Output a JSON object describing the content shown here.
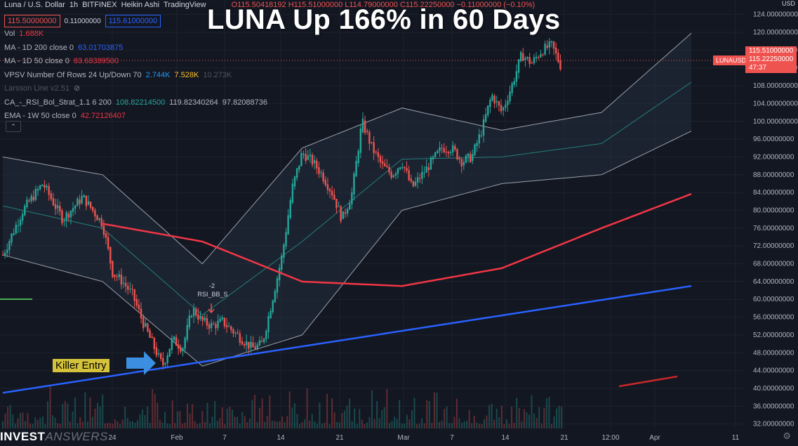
{
  "headline": "LUNA Up 166% in 60 Days",
  "symbol_line": {
    "name": "Luna / U.S. Dollar",
    "interval": "1h",
    "exchange": "BITFINEX",
    "type": "Heikin Ashi",
    "source": "TradingView",
    "ohlc": "O115.50418192 H115.51000000 L114.79000000 C115.22250000 −0.11000000 (−0.10%)"
  },
  "sell_price": "115.50000000",
  "spread": "0.11000000",
  "buy_price": "115.61000000",
  "indicators": [
    {
      "label": "Vol",
      "values": [
        {
          "text": "1.688K",
          "color": "#f23645"
        }
      ]
    },
    {
      "label": "MA - 1D 200 close 0",
      "values": [
        {
          "text": "63.01703875",
          "color": "#2962ff"
        }
      ]
    },
    {
      "label": "MA - 1D 50 close 0",
      "values": [
        {
          "text": "83.68389500",
          "color": "#f23645"
        }
      ]
    },
    {
      "label": "VPSV Number Of Rows 24 Up/Down 70",
      "values": [
        {
          "text": "2.744K",
          "color": "#2196f3"
        },
        {
          "text": "7.528K",
          "color": "#fbc02d"
        },
        {
          "text": "10.273K",
          "color": "#50535e"
        }
      ]
    },
    {
      "label": "Larsson Line v2.51",
      "values": [],
      "icon": "eye-off-icon"
    },
    {
      "label": "CA_-_RSI_Bol_Strat_1.1 6 200",
      "values": [
        {
          "text": "108.82214500",
          "color": "#26a69a"
        },
        {
          "text": "119.82340264",
          "color": "#b2b5be"
        },
        {
          "text": "97.82088736",
          "color": "#b2b5be"
        }
      ]
    },
    {
      "label": "EMA - 1W 50 close 0",
      "values": [
        {
          "text": "42.72126407",
          "color": "#f23645"
        }
      ]
    }
  ],
  "annotation_killer": "Killer Entry",
  "annotation_signal": "RSI_BB_S",
  "annotation_signal_num": "-2",
  "current_price_tag": "LUNAUSD",
  "current_price_high": "115.51000000",
  "current_price": "115.22250000",
  "countdown": "47:37",
  "currency": "USD",
  "brand_bold": "INVEST",
  "brand_thin": "ANSWERS",
  "colors": {
    "bg": "#131722",
    "up": "#26a69a",
    "down": "#ef5350",
    "ma200": "#2962ff",
    "ma50": "#f23645",
    "bb": "#787b86"
  },
  "chart_data": {
    "type": "line",
    "title": "LUNA Up 166% in 60 Days",
    "y_axis": {
      "ticks": [
        32,
        36,
        40,
        44,
        48,
        52,
        56,
        60,
        64,
        68,
        72,
        76,
        80,
        84,
        88,
        92,
        96,
        100,
        104,
        108,
        112,
        116,
        120,
        124
      ],
      "range": [
        31,
        126
      ],
      "unit": "USD"
    },
    "x_axis": {
      "tick_labels": [
        "24",
        "Feb",
        "7",
        "14",
        "21",
        "Mar",
        "7",
        "14",
        "21",
        "12:00",
        "Apr",
        "11"
      ]
    },
    "series": [
      {
        "name": "Price",
        "x": [
          0,
          2,
          4,
          6,
          8,
          10,
          11,
          12,
          13,
          14,
          15,
          16,
          17,
          18,
          19,
          20,
          21,
          22,
          23,
          24,
          25,
          26,
          27,
          28,
          29,
          30,
          31,
          32,
          33,
          34,
          35,
          36,
          37,
          38,
          39,
          40,
          41,
          42,
          43,
          44,
          45,
          46,
          47,
          48,
          49,
          50,
          51,
          52,
          53,
          54,
          55,
          56,
          57,
          58,
          59,
          60,
          61,
          62,
          63,
          64,
          65,
          66,
          67,
          68,
          69
        ],
        "values": [
          70,
          80,
          86,
          78,
          83,
          77,
          66,
          64,
          61,
          55,
          50,
          45,
          51,
          49,
          58,
          55,
          54,
          55,
          53,
          51,
          49,
          50,
          60,
          70,
          85,
          93,
          91,
          88,
          84,
          78,
          84,
          100,
          94,
          90,
          88,
          91,
          85,
          88,
          91,
          94,
          94,
          91,
          92,
          98,
          106,
          102,
          108,
          115,
          113,
          116,
          117,
          112,
          113,
          116,
          117,
          115.2,
          115.2,
          115.2,
          115.2,
          115.2,
          115.2,
          115.2,
          115.2,
          115.2,
          115.2
        ]
      },
      {
        "name": "MA - 1D 200",
        "x": [
          0,
          69
        ],
        "values": [
          39,
          63
        ]
      },
      {
        "name": "MA - 1D 50",
        "x": [
          10,
          20,
          30,
          40,
          50,
          60,
          69
        ],
        "values": [
          77,
          73,
          64,
          63,
          67,
          76,
          83.7
        ]
      },
      {
        "name": "BB Upper",
        "x": [
          0,
          10,
          20,
          30,
          40,
          50,
          60,
          69
        ],
        "values": [
          92,
          88,
          68,
          94,
          103,
          98,
          102,
          119.8
        ]
      },
      {
        "name": "BB Lower",
        "x": [
          0,
          10,
          20,
          30,
          40,
          50,
          60,
          69
        ],
        "values": [
          70,
          64,
          45,
          52,
          80,
          86,
          88,
          97.8
        ]
      }
    ]
  }
}
